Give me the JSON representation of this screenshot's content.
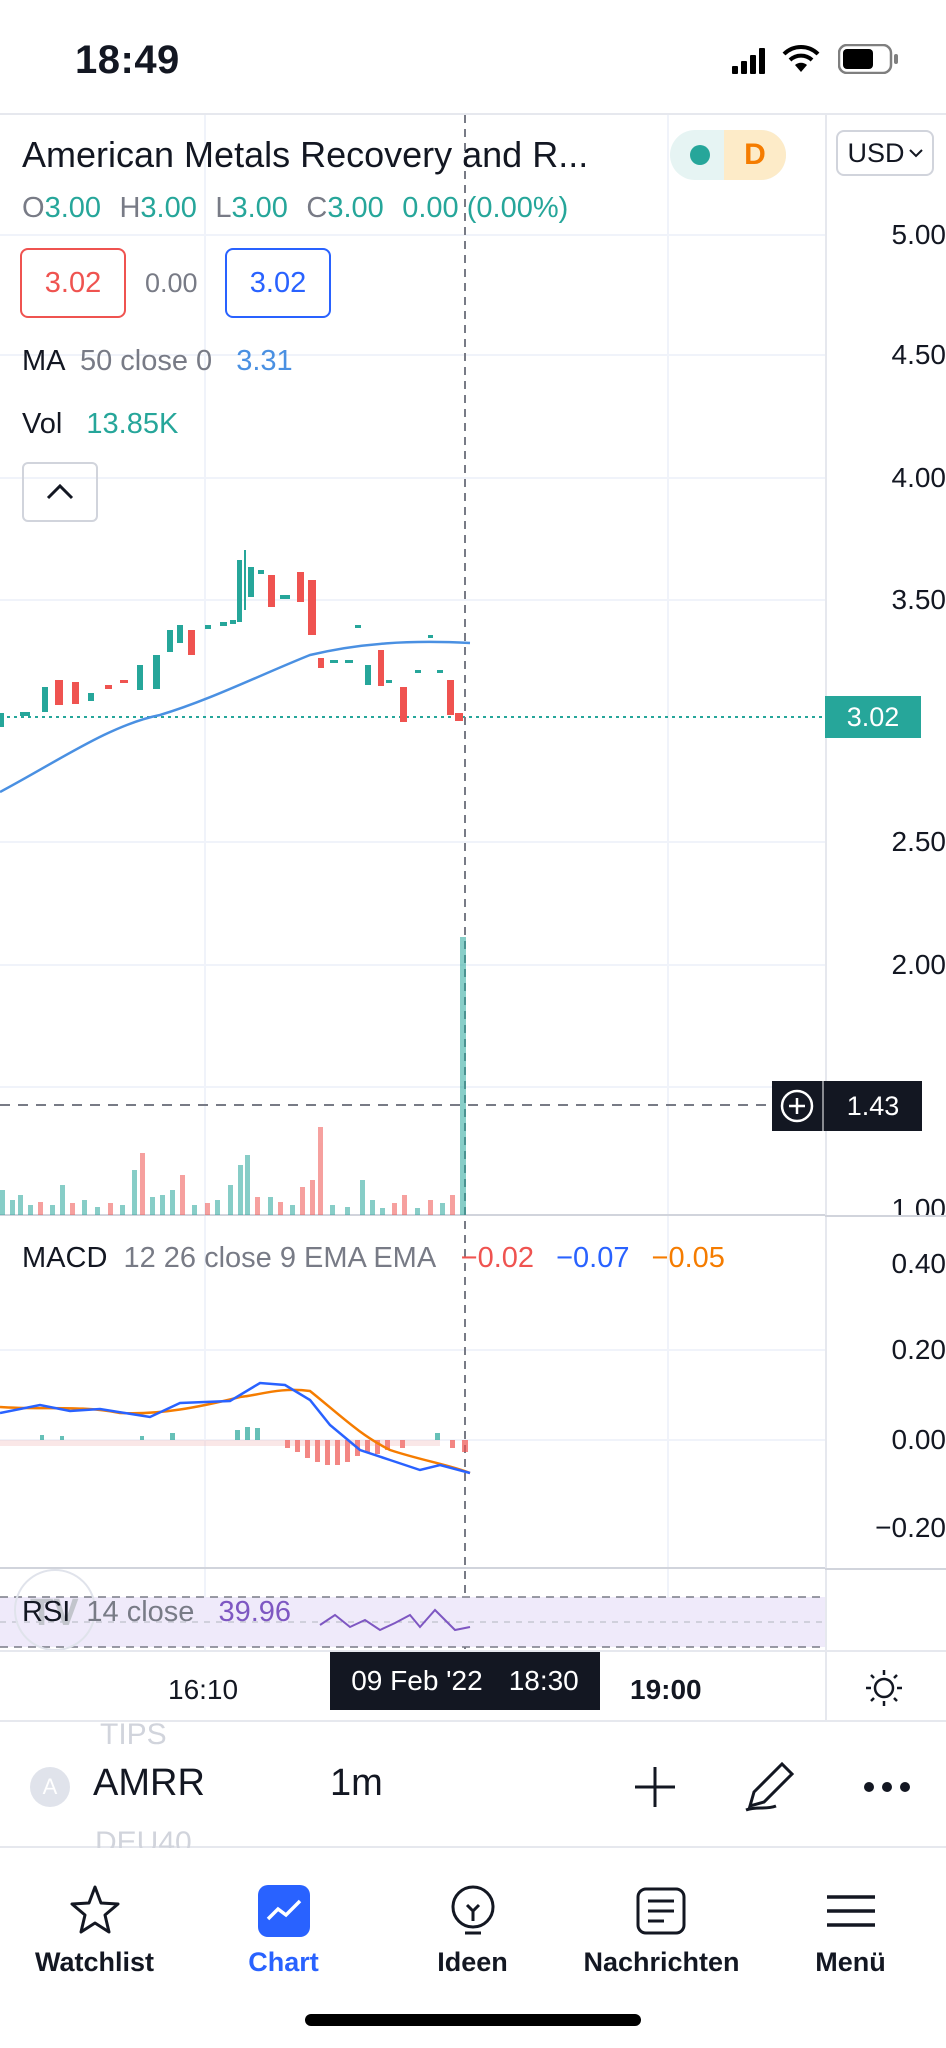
{
  "status": {
    "time": "18:49"
  },
  "symbol": {
    "title": "American Metals Recovery and R...",
    "interval_badge": "D",
    "currency": "USD",
    "ohlc": {
      "o_label": "O",
      "o": "3.00",
      "h_label": "H",
      "h": "3.00",
      "l_label": "L",
      "l": "3.00",
      "c_label": "C",
      "c": "3.00",
      "change": "0.00 (0.00%)"
    },
    "sell_price": "3.02",
    "spread": "0.00",
    "buy_price": "3.02"
  },
  "indicators": {
    "ma": {
      "label": "MA",
      "params": "50 close 0",
      "value": "3.31"
    },
    "vol": {
      "label": "Vol",
      "value": "13.85K"
    },
    "macd": {
      "label": "MACD",
      "params": "12 26 close 9 EMA EMA",
      "v1": "−0.02",
      "v2": "−0.07",
      "v3": "−0.05"
    },
    "rsi": {
      "label": "RSI",
      "params": "14 close",
      "value": "39.96"
    }
  },
  "price_axis": [
    "5.00",
    "4.50",
    "4.00",
    "3.50",
    "2.50",
    "2.00",
    "1.00"
  ],
  "current_price_tag": "3.02",
  "crosshair_price_tag": "1.43",
  "macd_axis": [
    "0.40",
    "0.20",
    "0.00",
    "−0.20"
  ],
  "time_axis": {
    "left": "16:10",
    "badge_date": "09 Feb '22",
    "badge_time": "18:30",
    "right": "19:00"
  },
  "toolbar": {
    "avatar_letter": "A",
    "ticker": "AMRR",
    "interval": "1m",
    "ghost_top": "TIPS",
    "ghost_bottom": "DEU40"
  },
  "tabs": [
    {
      "label": "Watchlist",
      "icon": "star-icon"
    },
    {
      "label": "Chart",
      "icon": "chart-icon"
    },
    {
      "label": "Ideen",
      "icon": "lightbulb-icon"
    },
    {
      "label": "Nachrichten",
      "icon": "news-icon"
    },
    {
      "label": "Menü",
      "icon": "hamburger-icon"
    }
  ],
  "colors": {
    "up": "#26a69a",
    "down": "#ef5350",
    "ma": "#4a90e2",
    "macd": "#2962ff",
    "signal": "#f57c00",
    "accent": "#2962ff"
  }
}
